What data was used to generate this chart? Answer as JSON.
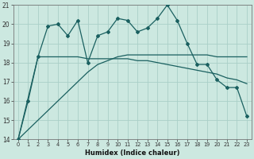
{
  "background_color": "#cce8e0",
  "grid_color": "#aacfc8",
  "line_color": "#1a6060",
  "xlabel": "Humidex (Indice chaleur)",
  "xlim": [
    -0.5,
    23.5
  ],
  "ylim": [
    14,
    21
  ],
  "yticks": [
    14,
    15,
    16,
    17,
    18,
    19,
    20,
    21
  ],
  "xticks": [
    0,
    1,
    2,
    3,
    4,
    5,
    6,
    7,
    8,
    9,
    10,
    11,
    12,
    13,
    14,
    15,
    16,
    17,
    18,
    19,
    20,
    21,
    22,
    23
  ],
  "series1_x": [
    0,
    1,
    2,
    3,
    4,
    5,
    6,
    7,
    8,
    9,
    10,
    11,
    12,
    13,
    14,
    15,
    16,
    17,
    18,
    19,
    20,
    21,
    22,
    23
  ],
  "series1_y": [
    14,
    16,
    18.3,
    19.9,
    20.0,
    19.4,
    20.2,
    18.0,
    19.4,
    19.6,
    20.3,
    20.2,
    19.6,
    19.8,
    20.3,
    21.0,
    20.2,
    19.0,
    17.9,
    17.9,
    17.1,
    16.7,
    16.7,
    15.2
  ],
  "series2_x": [
    0,
    2,
    3,
    4,
    5,
    6,
    7,
    8,
    9,
    10,
    11,
    12,
    13,
    14,
    15,
    16,
    17,
    18,
    19,
    20,
    21,
    22,
    23
  ],
  "series2_y": [
    14,
    18.3,
    18.3,
    18.3,
    18.3,
    18.3,
    18.2,
    18.2,
    18.2,
    18.2,
    18.2,
    18.1,
    18.1,
    18.0,
    17.9,
    17.8,
    17.7,
    17.6,
    17.5,
    17.4,
    17.2,
    17.1,
    16.9
  ],
  "series3_x": [
    0,
    1,
    2,
    3,
    4,
    5,
    6,
    7,
    8,
    9,
    10,
    11,
    12,
    13,
    14,
    15,
    16,
    17,
    18,
    19,
    20,
    21,
    22,
    23
  ],
  "series3_y": [
    14,
    14.5,
    15.0,
    15.5,
    16.0,
    16.5,
    17.0,
    17.5,
    17.9,
    18.1,
    18.3,
    18.4,
    18.4,
    18.4,
    18.4,
    18.4,
    18.4,
    18.4,
    18.4,
    18.4,
    18.3,
    18.3,
    18.3,
    18.3
  ]
}
